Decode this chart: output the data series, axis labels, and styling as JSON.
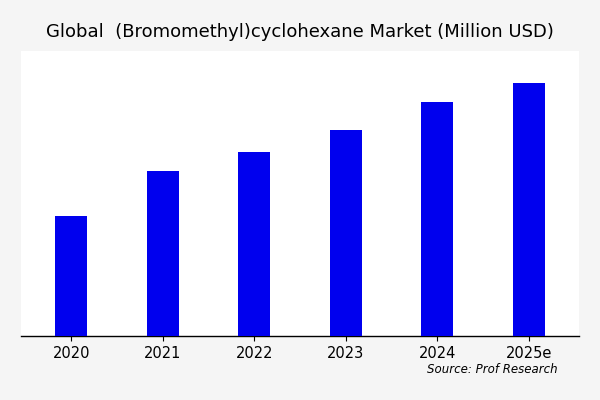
{
  "title": "Global  (Bromomethyl)cyclohexane Market (Million USD)",
  "categories": [
    "2020",
    "2021",
    "2022",
    "2023",
    "2024",
    "2025e"
  ],
  "values": [
    38,
    52,
    58,
    65,
    74,
    80
  ],
  "bar_color": "#0000EE",
  "background_color": "#f5f5f5",
  "plot_bg_color": "#ffffff",
  "source_text": "Source: Prof Research",
  "title_fontsize": 13,
  "tick_fontsize": 10.5,
  "source_fontsize": 8.5,
  "ylim": [
    0,
    90
  ],
  "bar_width": 0.35,
  "figsize": [
    6.0,
    4.0
  ],
  "dpi": 100
}
